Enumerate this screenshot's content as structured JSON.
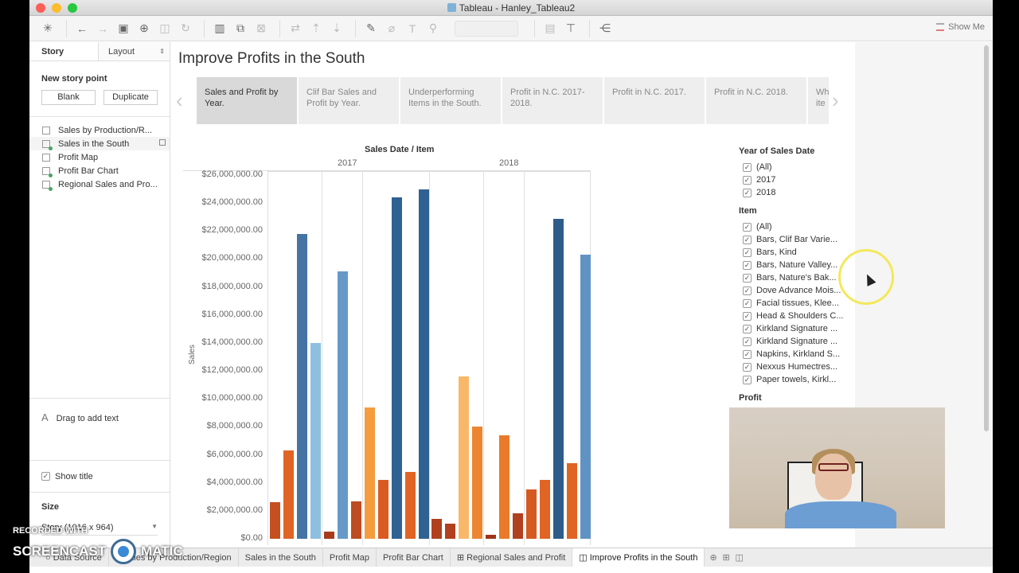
{
  "window": {
    "title": "Tableau - Hanley_Tableau2",
    "toolbar": {
      "show_me_label": "Show Me"
    }
  },
  "left_panel": {
    "tabs": [
      {
        "label": "Story"
      },
      {
        "label": "Layout"
      }
    ],
    "new_story_point_label": "New story point",
    "blank_button": "Blank",
    "duplicate_button": "Duplicate",
    "sheets": [
      {
        "label": "Sales by Production/R..."
      },
      {
        "label": "Sales in the South"
      },
      {
        "label": "Profit Map"
      },
      {
        "label": "Profit Bar Chart"
      },
      {
        "label": "Regional Sales and Pro..."
      }
    ],
    "drag_text_label": "Drag to add text",
    "show_title_label": "Show title",
    "size_label": "Size",
    "size_value": "Story (1016 x 964)"
  },
  "story": {
    "title": "Improve Profits in the South",
    "points": [
      {
        "label": "Sales and Profit by Year."
      },
      {
        "label": "Clif Bar Sales and Profit by Year."
      },
      {
        "label": "Underperforming Items in the South."
      },
      {
        "label": "Profit in N.C. 2017-2018."
      },
      {
        "label": "Profit in N.C. 2017."
      },
      {
        "label": "Profit in N.C. 2018."
      },
      {
        "label": "Wh ite"
      }
    ]
  },
  "chart_data": {
    "type": "bar",
    "title": "Sales Date / Item",
    "xlabel": "Sales Date / Item",
    "ylabel": "Sales",
    "ylim": [
      0,
      26000000
    ],
    "yticks": [
      "$0.00",
      "$2,000,000.00",
      "$4,000,000.00",
      "$6,000,000.00",
      "$8,000,000.00",
      "$10,000,000.00",
      "$12,000,000.00",
      "$14,000,000.00",
      "$16,000,000.00",
      "$18,000,000.00",
      "$20,000,000.00",
      "$22,000,000.00",
      "$24,000,000.00",
      "$26,000,000.00"
    ],
    "categories": [
      "2017",
      "2018"
    ],
    "grid": true,
    "color_encoding": "Profit (orange = low, blue = high)",
    "bars": [
      {
        "year": "2017",
        "value": 2600000,
        "color": "#c4501f"
      },
      {
        "year": "2017",
        "value": 6300000,
        "color": "#e06424"
      },
      {
        "year": "2017",
        "value": 21800000,
        "color": "#4574a4"
      },
      {
        "year": "2017",
        "value": 14000000,
        "color": "#8fbfe0"
      },
      {
        "year": "2017",
        "value": 500000,
        "color": "#a63c1c"
      },
      {
        "year": "2017",
        "value": 19100000,
        "color": "#6699c8"
      },
      {
        "year": "2017",
        "value": 2700000,
        "color": "#bd4c20"
      },
      {
        "year": "2017",
        "value": 9400000,
        "color": "#f59c3f"
      },
      {
        "year": "2017",
        "value": 4200000,
        "color": "#d95b22"
      },
      {
        "year": "2017",
        "value": 24400000,
        "color": "#2f6192"
      },
      {
        "year": "2017",
        "value": 4800000,
        "color": "#e06424"
      },
      {
        "year": "2017",
        "value": 25000000,
        "color": "#2f6192"
      },
      {
        "year": "2018",
        "value": 1400000,
        "color": "#b0401e"
      },
      {
        "year": "2018",
        "value": 1100000,
        "color": "#b0401e"
      },
      {
        "year": "2018",
        "value": 11600000,
        "color": "#f9b869"
      },
      {
        "year": "2018",
        "value": 8000000,
        "color": "#ec8430"
      },
      {
        "year": "2018",
        "value": 300000,
        "color": "#a0341a"
      },
      {
        "year": "2018",
        "value": 7400000,
        "color": "#ea7a2a"
      },
      {
        "year": "2018",
        "value": 1800000,
        "color": "#b0401e"
      },
      {
        "year": "2018",
        "value": 3500000,
        "color": "#d45a22"
      },
      {
        "year": "2018",
        "value": 4200000,
        "color": "#e06424"
      },
      {
        "year": "2018",
        "value": 22900000,
        "color": "#2d5c8a"
      },
      {
        "year": "2018",
        "value": 5400000,
        "color": "#e06424"
      },
      {
        "year": "2018",
        "value": 20300000,
        "color": "#6093c3"
      }
    ]
  },
  "filters": {
    "year": {
      "title": "Year of Sales Date",
      "options": [
        {
          "label": "(All)",
          "checked": true
        },
        {
          "label": "2017",
          "checked": true
        },
        {
          "label": "2018",
          "checked": true
        }
      ]
    },
    "item": {
      "title": "Item",
      "options": [
        {
          "label": "(All)",
          "checked": true
        },
        {
          "label": "Bars, Clif Bar Varie...",
          "checked": true
        },
        {
          "label": "Bars, Kind",
          "checked": true
        },
        {
          "label": "Bars, Nature Valley...",
          "checked": true
        },
        {
          "label": "Bars, Nature's Bak...",
          "checked": true
        },
        {
          "label": "Dove Advance Mois...",
          "checked": true
        },
        {
          "label": "Facial tissues, Klee...",
          "checked": true
        },
        {
          "label": "Head & Shoulders C...",
          "checked": true
        },
        {
          "label": "Kirkland Signature ...",
          "checked": true
        },
        {
          "label": "Kirkland Signature ...",
          "checked": true
        },
        {
          "label": "Napkins, Kirkland S...",
          "checked": true
        },
        {
          "label": "Nexxus Humectres...",
          "checked": true
        },
        {
          "label": "Paper towels, Kirkl...",
          "checked": true
        }
      ]
    },
    "profit_title": "Profit"
  },
  "bottom_tabs": [
    {
      "label": "Data Source"
    },
    {
      "label": "Sales by Production/Region"
    },
    {
      "label": "Sales in the South"
    },
    {
      "label": "Profit Map"
    },
    {
      "label": "Profit Bar Chart"
    },
    {
      "label": "Regional Sales and Profit"
    },
    {
      "label": "Improve Profits in the South"
    }
  ],
  "watermark": {
    "line1": "RECORDED WITH",
    "left": "SCREENCAST",
    "right": "MATIC"
  }
}
